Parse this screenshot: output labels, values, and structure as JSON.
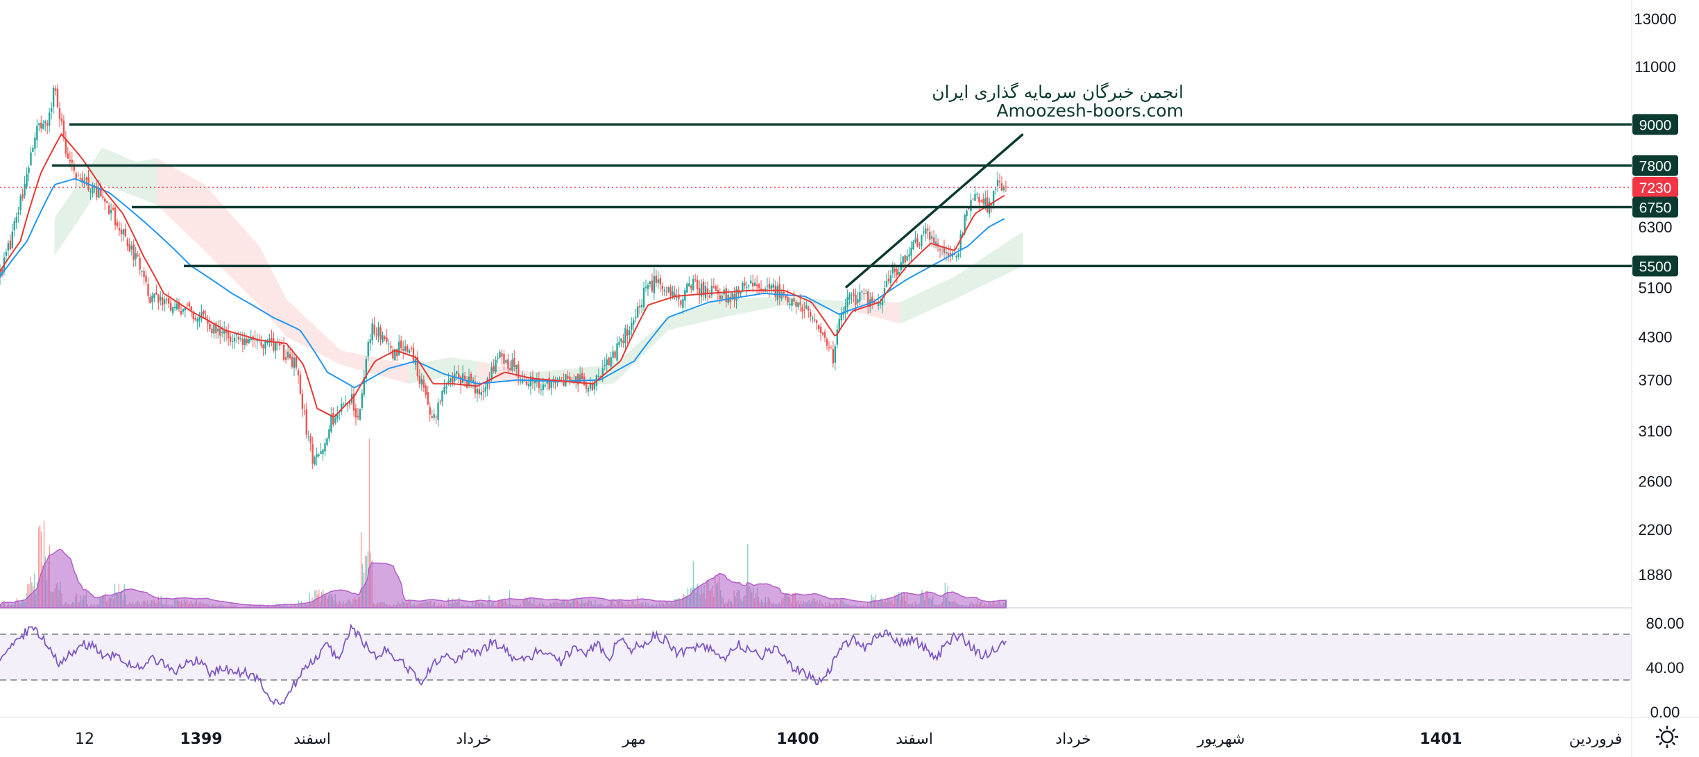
{
  "watermark": {
    "line1": "انجمن خبرگان سرمایه گذاری ایران",
    "line2": "Amoozesh-boors.com"
  },
  "colors": {
    "up": "#26a69a",
    "down": "#ef5350",
    "ema_fast": "#e53935",
    "ema_slow": "#2196f3",
    "level_line": "#0a3a30",
    "last_price": "#f23645",
    "rsi": "#7e57c2",
    "volume_ma": "#b35fc8",
    "cloud_bull": "#e3f1e6",
    "cloud_bear": "#fde6e6"
  },
  "icons": {
    "settings": "sun-gear-icon"
  },
  "chart_data": [
    {
      "type": "candlestick",
      "price_axis_labels": [
        "13000",
        "11000",
        "9000",
        "7800",
        "7230",
        "6750",
        "6300",
        "5500",
        "5100",
        "4300",
        "3700",
        "3100",
        "2600",
        "2200",
        "1880"
      ],
      "time_axis_labels": [
        "12",
        "1399",
        "اسفند",
        "خرداد",
        "مهر",
        "1400",
        "اسفند",
        "خرداد",
        "شهریور",
        "1401",
        "فروردین"
      ],
      "last_price": 7230,
      "horizontal_levels": [
        9000,
        7800,
        6750,
        5500
      ],
      "trendline": {
        "from": 5100,
        "to": 8700
      },
      "indicators": [
        "EMA fast (red)",
        "EMA slow (blue)",
        "Ichimoku cloud",
        "Volume with moving average"
      ],
      "close_path": [
        {
          "x": 0,
          "y": 5300
        },
        {
          "x": 20,
          "y": 6200
        },
        {
          "x": 40,
          "y": 7600
        },
        {
          "x": 55,
          "y": 8800
        },
        {
          "x": 70,
          "y": 9200
        },
        {
          "x": 80,
          "y": 10200
        },
        {
          "x": 95,
          "y": 8400
        },
        {
          "x": 110,
          "y": 7600
        },
        {
          "x": 130,
          "y": 7300
        },
        {
          "x": 150,
          "y": 7000
        },
        {
          "x": 170,
          "y": 6400
        },
        {
          "x": 190,
          "y": 5900
        },
        {
          "x": 205,
          "y": 5500
        },
        {
          "x": 220,
          "y": 4900
        },
        {
          "x": 250,
          "y": 4800
        },
        {
          "x": 280,
          "y": 4700
        },
        {
          "x": 310,
          "y": 4450
        },
        {
          "x": 330,
          "y": 4350
        },
        {
          "x": 360,
          "y": 4250
        },
        {
          "x": 400,
          "y": 4200
        },
        {
          "x": 435,
          "y": 3900
        },
        {
          "x": 440,
          "y": 3500
        },
        {
          "x": 450,
          "y": 3100
        },
        {
          "x": 460,
          "y": 2750
        },
        {
          "x": 470,
          "y": 2900
        },
        {
          "x": 485,
          "y": 3200
        },
        {
          "x": 500,
          "y": 3400
        },
        {
          "x": 515,
          "y": 3500
        },
        {
          "x": 525,
          "y": 3250
        },
        {
          "x": 535,
          "y": 3800
        },
        {
          "x": 545,
          "y": 4500
        },
        {
          "x": 560,
          "y": 4300
        },
        {
          "x": 575,
          "y": 4000
        },
        {
          "x": 590,
          "y": 4200
        },
        {
          "x": 605,
          "y": 4000
        },
        {
          "x": 620,
          "y": 3600
        },
        {
          "x": 635,
          "y": 3200
        },
        {
          "x": 650,
          "y": 3600
        },
        {
          "x": 670,
          "y": 3750
        },
        {
          "x": 690,
          "y": 3650
        },
        {
          "x": 710,
          "y": 3550
        },
        {
          "x": 730,
          "y": 4000
        },
        {
          "x": 750,
          "y": 3900
        },
        {
          "x": 770,
          "y": 3700
        },
        {
          "x": 790,
          "y": 3650
        },
        {
          "x": 810,
          "y": 3650
        },
        {
          "x": 830,
          "y": 3700
        },
        {
          "x": 850,
          "y": 3700
        },
        {
          "x": 870,
          "y": 3650
        },
        {
          "x": 890,
          "y": 3900
        },
        {
          "x": 910,
          "y": 4200
        },
        {
          "x": 930,
          "y": 4600
        },
        {
          "x": 945,
          "y": 5000
        },
        {
          "x": 960,
          "y": 5200
        },
        {
          "x": 980,
          "y": 5000
        },
        {
          "x": 1000,
          "y": 4900
        },
        {
          "x": 1010,
          "y": 5200
        },
        {
          "x": 1030,
          "y": 5050
        },
        {
          "x": 1050,
          "y": 5000
        },
        {
          "x": 1070,
          "y": 4950
        },
        {
          "x": 1090,
          "y": 5100
        },
        {
          "x": 1110,
          "y": 5150
        },
        {
          "x": 1130,
          "y": 5050
        },
        {
          "x": 1150,
          "y": 5000
        },
        {
          "x": 1170,
          "y": 4850
        },
        {
          "x": 1190,
          "y": 4600
        },
        {
          "x": 1210,
          "y": 4300
        },
        {
          "x": 1222,
          "y": 4000
        },
        {
          "x": 1230,
          "y": 4500
        },
        {
          "x": 1240,
          "y": 4850
        },
        {
          "x": 1260,
          "y": 4950
        },
        {
          "x": 1285,
          "y": 4800
        },
        {
          "x": 1300,
          "y": 5200
        },
        {
          "x": 1320,
          "y": 5550
        },
        {
          "x": 1340,
          "y": 5900
        },
        {
          "x": 1360,
          "y": 6200
        },
        {
          "x": 1375,
          "y": 5900
        },
        {
          "x": 1390,
          "y": 5700
        },
        {
          "x": 1405,
          "y": 5800
        },
        {
          "x": 1415,
          "y": 6500
        },
        {
          "x": 1425,
          "y": 7100
        },
        {
          "x": 1440,
          "y": 6900
        },
        {
          "x": 1452,
          "y": 6700
        },
        {
          "x": 1460,
          "y": 7300
        },
        {
          "x": 1475,
          "y": 7100
        }
      ],
      "ema_fast_path": [
        {
          "x": 0,
          "y": 5400
        },
        {
          "x": 30,
          "y": 6000
        },
        {
          "x": 60,
          "y": 7600
        },
        {
          "x": 90,
          "y": 8700
        },
        {
          "x": 120,
          "y": 8000
        },
        {
          "x": 150,
          "y": 7200
        },
        {
          "x": 180,
          "y": 6600
        },
        {
          "x": 210,
          "y": 5700
        },
        {
          "x": 240,
          "y": 5000
        },
        {
          "x": 280,
          "y": 4700
        },
        {
          "x": 330,
          "y": 4400
        },
        {
          "x": 380,
          "y": 4250
        },
        {
          "x": 420,
          "y": 4200
        },
        {
          "x": 445,
          "y": 3900
        },
        {
          "x": 465,
          "y": 3350
        },
        {
          "x": 490,
          "y": 3250
        },
        {
          "x": 520,
          "y": 3500
        },
        {
          "x": 550,
          "y": 3950
        },
        {
          "x": 580,
          "y": 4100
        },
        {
          "x": 610,
          "y": 4000
        },
        {
          "x": 635,
          "y": 3650
        },
        {
          "x": 665,
          "y": 3650
        },
        {
          "x": 700,
          "y": 3620
        },
        {
          "x": 740,
          "y": 3800
        },
        {
          "x": 780,
          "y": 3720
        },
        {
          "x": 830,
          "y": 3680
        },
        {
          "x": 870,
          "y": 3650
        },
        {
          "x": 910,
          "y": 3950
        },
        {
          "x": 950,
          "y": 4800
        },
        {
          "x": 990,
          "y": 4950
        },
        {
          "x": 1040,
          "y": 5000
        },
        {
          "x": 1100,
          "y": 5050
        },
        {
          "x": 1150,
          "y": 5050
        },
        {
          "x": 1190,
          "y": 4850
        },
        {
          "x": 1225,
          "y": 4300
        },
        {
          "x": 1250,
          "y": 4700
        },
        {
          "x": 1290,
          "y": 4850
        },
        {
          "x": 1330,
          "y": 5500
        },
        {
          "x": 1365,
          "y": 5950
        },
        {
          "x": 1400,
          "y": 5800
        },
        {
          "x": 1430,
          "y": 6600
        },
        {
          "x": 1460,
          "y": 6900
        },
        {
          "x": 1475,
          "y": 7050
        }
      ],
      "ema_slow_path": [
        {
          "x": 0,
          "y": 5300
        },
        {
          "x": 40,
          "y": 6000
        },
        {
          "x": 80,
          "y": 7300
        },
        {
          "x": 110,
          "y": 7450
        },
        {
          "x": 160,
          "y": 7100
        },
        {
          "x": 220,
          "y": 6300
        },
        {
          "x": 280,
          "y": 5500
        },
        {
          "x": 340,
          "y": 5000
        },
        {
          "x": 400,
          "y": 4600
        },
        {
          "x": 440,
          "y": 4400
        },
        {
          "x": 480,
          "y": 3800
        },
        {
          "x": 520,
          "y": 3600
        },
        {
          "x": 570,
          "y": 3850
        },
        {
          "x": 610,
          "y": 3950
        },
        {
          "x": 650,
          "y": 3780
        },
        {
          "x": 700,
          "y": 3650
        },
        {
          "x": 760,
          "y": 3700
        },
        {
          "x": 820,
          "y": 3680
        },
        {
          "x": 880,
          "y": 3700
        },
        {
          "x": 930,
          "y": 3950
        },
        {
          "x": 980,
          "y": 4600
        },
        {
          "x": 1040,
          "y": 4850
        },
        {
          "x": 1120,
          "y": 5000
        },
        {
          "x": 1180,
          "y": 4950
        },
        {
          "x": 1230,
          "y": 4650
        },
        {
          "x": 1280,
          "y": 4850
        },
        {
          "x": 1330,
          "y": 5250
        },
        {
          "x": 1380,
          "y": 5600
        },
        {
          "x": 1420,
          "y": 5900
        },
        {
          "x": 1450,
          "y": 6300
        },
        {
          "x": 1475,
          "y": 6500
        }
      ],
      "cloud": [
        {
          "x": 80,
          "bias": "bull",
          "top": 6500,
          "bottom": 5700
        },
        {
          "x": 150,
          "bias": "bull",
          "top": 8300,
          "bottom": 7300
        },
        {
          "x": 200,
          "bias": "bull",
          "top": 7900,
          "bottom": 7000
        },
        {
          "x": 230,
          "bias": "bear",
          "top": 8000,
          "bottom": 6800
        },
        {
          "x": 300,
          "bias": "bear",
          "top": 7300,
          "bottom": 5800
        },
        {
          "x": 380,
          "bias": "bear",
          "top": 5900,
          "bottom": 4800
        },
        {
          "x": 420,
          "bias": "bear",
          "top": 4900,
          "bottom": 4300
        },
        {
          "x": 500,
          "bias": "bear",
          "top": 4100,
          "bottom": 3900
        },
        {
          "x": 600,
          "bias": "bull",
          "top": 3900,
          "bottom": 3650
        },
        {
          "x": 660,
          "bias": "bull",
          "top": 4000,
          "bottom": 3750
        },
        {
          "x": 700,
          "bias": "bear",
          "top": 3950,
          "bottom": 3700
        },
        {
          "x": 780,
          "bias": "bull",
          "top": 3800,
          "bottom": 3650
        },
        {
          "x": 900,
          "bias": "bull",
          "top": 3900,
          "bottom": 3650
        },
        {
          "x": 980,
          "bias": "bull",
          "top": 4600,
          "bottom": 4400
        },
        {
          "x": 1060,
          "bias": "bull",
          "top": 4900,
          "bottom": 4600
        },
        {
          "x": 1150,
          "bias": "bull",
          "top": 4950,
          "bottom": 4800
        },
        {
          "x": 1250,
          "bias": "bear",
          "top": 4850,
          "bottom": 4700
        },
        {
          "x": 1320,
          "bias": "bull",
          "top": 4850,
          "bottom": 4500
        },
        {
          "x": 1400,
          "bias": "bull",
          "top": 5300,
          "bottom": 4900
        },
        {
          "x": 1500,
          "bias": "bull",
          "top": 6200,
          "bottom": 5500
        }
      ]
    },
    {
      "type": "bar",
      "name": "volume",
      "values": [
        4,
        7,
        23,
        59,
        17,
        5,
        11,
        3,
        10,
        16,
        4,
        5,
        8,
        3,
        7,
        6,
        4,
        3,
        2,
        1,
        2,
        1,
        3,
        2,
        5,
        12,
        10,
        6,
        8,
        52,
        5,
        3,
        6,
        4,
        5,
        3,
        7,
        2,
        5,
        4,
        6,
        3,
        8,
        4,
        5,
        6,
        7,
        6,
        3,
        6,
        5,
        4,
        3,
        4,
        8,
        14,
        18,
        22,
        8,
        12,
        18,
        9,
        6,
        10,
        5,
        7,
        4,
        6,
        3,
        2,
        9,
        6,
        11,
        5,
        12,
        4,
        7,
        3,
        6,
        4,
        5,
        6
      ]
    },
    {
      "type": "line",
      "name": "RSI",
      "axis_labels": [
        "80.00",
        "40.00",
        "0.00"
      ],
      "bands": [
        30,
        70
      ],
      "values": [
        50,
        62,
        70,
        76,
        60,
        45,
        52,
        62,
        58,
        48,
        52,
        44,
        38,
        50,
        42,
        36,
        44,
        48,
        35,
        40,
        34,
        36,
        30,
        12,
        8,
        22,
        38,
        50,
        60,
        44,
        76,
        65,
        50,
        56,
        48,
        38,
        28,
        44,
        52,
        48,
        56,
        54,
        62,
        58,
        48,
        45,
        56,
        52,
        45,
        58,
        52,
        62,
        48,
        66,
        56,
        62,
        70,
        64,
        52,
        56,
        60,
        54,
        50,
        62,
        56,
        50,
        58,
        50,
        38,
        34,
        28,
        40,
        60,
        66,
        56,
        68,
        72,
        62,
        66,
        58,
        48,
        62,
        70,
        58,
        50,
        56,
        62
      ]
    }
  ]
}
